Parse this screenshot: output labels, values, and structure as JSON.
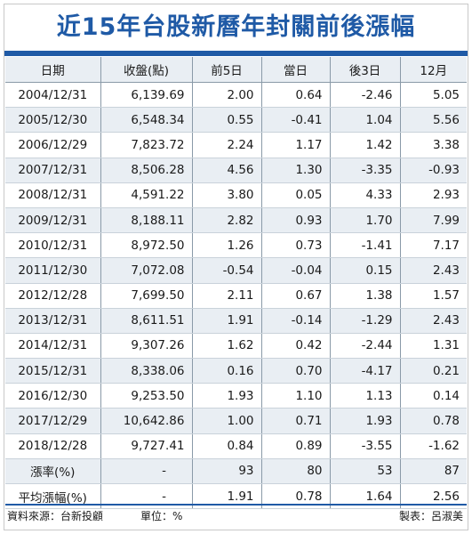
{
  "title": "近15年台股新曆年封關前後漲幅",
  "table": {
    "headers": [
      "日期",
      "收盤(點)",
      "前5日",
      "當日",
      "後3日",
      "12月"
    ],
    "rows": [
      [
        "2004/12/31",
        "6,139.69",
        "2.00",
        "0.64",
        "-2.46",
        "5.05"
      ],
      [
        "2005/12/30",
        "6,548.34",
        "0.55",
        "-0.41",
        "1.04",
        "5.56"
      ],
      [
        "2006/12/29",
        "7,823.72",
        "2.24",
        "1.17",
        "1.42",
        "3.38"
      ],
      [
        "2007/12/31",
        "8,506.28",
        "4.56",
        "1.30",
        "-3.35",
        "-0.93"
      ],
      [
        "2008/12/31",
        "4,591.22",
        "3.80",
        "0.05",
        "4.33",
        "2.93"
      ],
      [
        "2009/12/31",
        "8,188.11",
        "2.82",
        "0.93",
        "1.70",
        "7.99"
      ],
      [
        "2010/12/31",
        "8,972.50",
        "1.26",
        "0.73",
        "-1.41",
        "7.17"
      ],
      [
        "2011/12/30",
        "7,072.08",
        "-0.54",
        "-0.04",
        "0.15",
        "2.43"
      ],
      [
        "2012/12/28",
        "7,699.50",
        "2.11",
        "0.67",
        "1.38",
        "1.57"
      ],
      [
        "2013/12/31",
        "8,611.51",
        "1.91",
        "-0.14",
        "-1.29",
        "2.43"
      ],
      [
        "2014/12/31",
        "9,307.26",
        "1.62",
        "0.42",
        "-2.44",
        "1.31"
      ],
      [
        "2015/12/31",
        "8,338.06",
        "0.16",
        "0.70",
        "-4.17",
        "0.21"
      ],
      [
        "2016/12/30",
        "9,253.50",
        "1.93",
        "1.10",
        "1.13",
        "0.14"
      ],
      [
        "2017/12/29",
        "10,642.86",
        "1.00",
        "0.71",
        "1.93",
        "0.78"
      ],
      [
        "2018/12/28",
        "9,727.41",
        "0.84",
        "0.89",
        "-3.55",
        "-1.62"
      ]
    ],
    "summary": [
      [
        "漲率(%)",
        "-",
        "93",
        "80",
        "53",
        "87"
      ],
      [
        "平均漲幅(%)",
        "-",
        "1.91",
        "0.78",
        "1.64",
        "2.56"
      ]
    ]
  },
  "footer": {
    "source": "資料來源：台新投顧",
    "unit": "單位：%",
    "maker": "製表：呂淑美"
  },
  "colors": {
    "title": "#1f5aa6",
    "header_bg": "#e9eef3",
    "alt_row_bg": "#e9eef3"
  }
}
